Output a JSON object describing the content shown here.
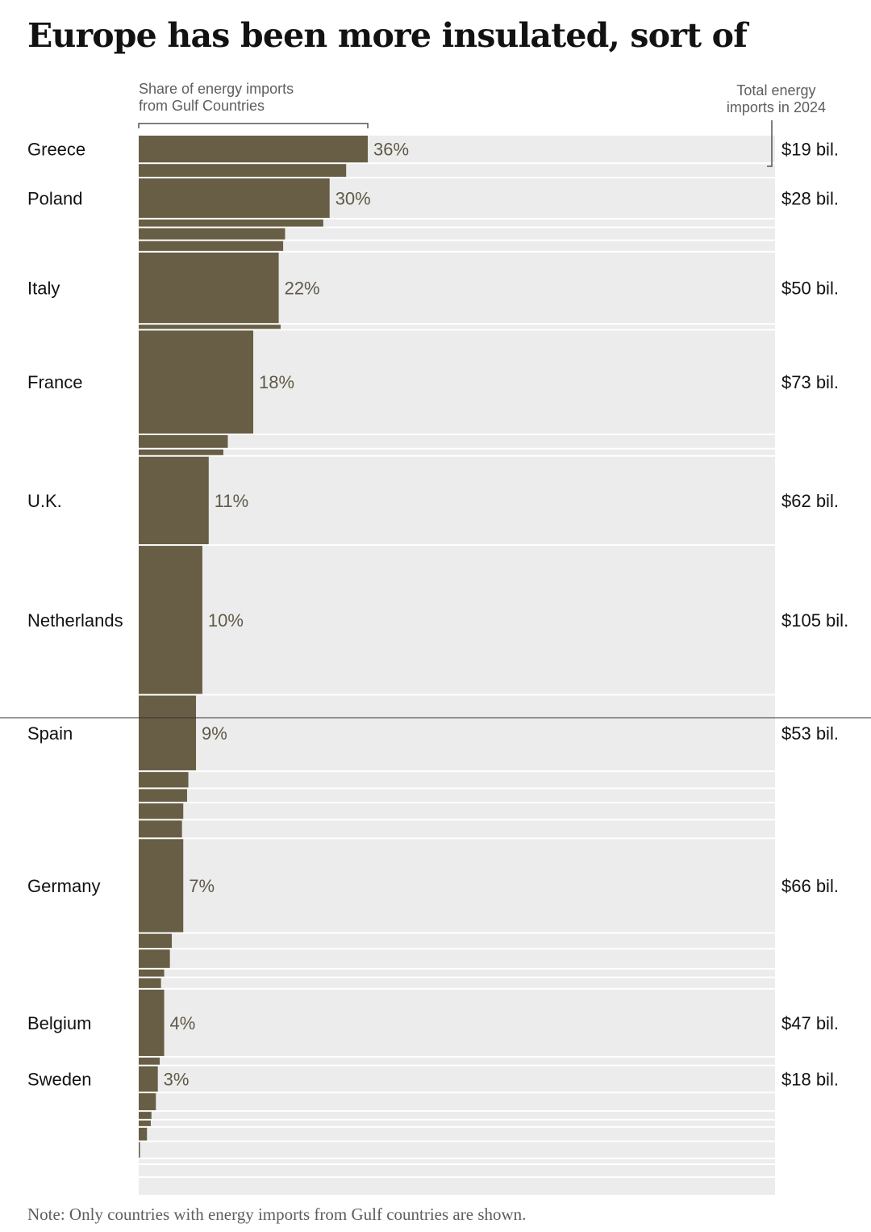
{
  "title": "Europe has been more insulated, sort of",
  "header": {
    "share_line1": "Share of energy imports",
    "share_line2": "from Gulf Countries",
    "total_line1": "Total energy",
    "total_line2": "imports in 2024"
  },
  "note": "Note: Only countries with energy imports from Gulf countries are shown.",
  "colors": {
    "bar": "#675e45",
    "track": "#ececec",
    "pct_text": "#5f5a47"
  },
  "chart_data": {
    "type": "bar",
    "orientation": "horizontal",
    "xlabel": "Share of energy imports from Gulf Countries",
    "total_label": "Total energy imports in 2024",
    "xlim": [
      0,
      100
    ],
    "units": {
      "share": "%",
      "total": "$ billions"
    },
    "row_height_encodes": "total energy imports in 2024",
    "rows": [
      {
        "country": "Greece",
        "share": 36,
        "pct_label": "36%",
        "total": 19,
        "total_label": "$19 bil."
      },
      {
        "country": "",
        "share": 32.6,
        "total": 9
      },
      {
        "country": "Poland",
        "share": 30,
        "pct_label": "30%",
        "total": 28,
        "total_label": "$28 bil."
      },
      {
        "country": "",
        "share": 29,
        "total": 5
      },
      {
        "country": "",
        "share": 23,
        "total": 8
      },
      {
        "country": "",
        "share": 22.7,
        "total": 7
      },
      {
        "country": "Italy",
        "share": 22,
        "pct_label": "22%",
        "total": 50,
        "total_label": "$50 bil."
      },
      {
        "country": "",
        "share": 22.3,
        "total": 3
      },
      {
        "country": "France",
        "share": 18,
        "pct_label": "18%",
        "total": 73,
        "total_label": "$73 bil."
      },
      {
        "country": "",
        "share": 14,
        "total": 9
      },
      {
        "country": "",
        "share": 13.3,
        "total": 4
      },
      {
        "country": "U.K.",
        "share": 11,
        "pct_label": "11%",
        "total": 62,
        "total_label": "$62 bil."
      },
      {
        "country": "Netherlands",
        "share": 10,
        "pct_label": "10%",
        "total": 105,
        "total_label": "$105 bil."
      },
      {
        "country": "Spain",
        "share": 9,
        "pct_label": "9%",
        "total": 53,
        "total_label": "$53 bil."
      },
      {
        "country": "",
        "share": 7.8,
        "total": 11
      },
      {
        "country": "",
        "share": 7.6,
        "total": 9
      },
      {
        "country": "",
        "share": 7,
        "total": 11
      },
      {
        "country": "",
        "share": 6.8,
        "total": 12
      },
      {
        "country": "Germany",
        "share": 7,
        "pct_label": "7%",
        "total": 66,
        "total_label": "$66 bil."
      },
      {
        "country": "",
        "share": 5.2,
        "total": 10
      },
      {
        "country": "",
        "share": 4.9,
        "total": 13
      },
      {
        "country": "",
        "share": 4,
        "total": 5
      },
      {
        "country": "",
        "share": 3.5,
        "total": 7
      },
      {
        "country": "Belgium",
        "share": 4,
        "pct_label": "4%",
        "total": 47,
        "total_label": "$47 bil."
      },
      {
        "country": "",
        "share": 3.3,
        "total": 5
      },
      {
        "country": "Sweden",
        "share": 3,
        "pct_label": "3%",
        "total": 18,
        "total_label": "$18 bil."
      },
      {
        "country": "",
        "share": 2.7,
        "total": 12
      },
      {
        "country": "",
        "share": 2,
        "total": 5
      },
      {
        "country": "",
        "share": 1.9,
        "total": 4
      },
      {
        "country": "",
        "share": 1.3,
        "total": 9
      },
      {
        "country": "",
        "share": 0.2,
        "total": 11
      },
      {
        "country": "",
        "share": 0,
        "total": 3
      },
      {
        "country": "",
        "share": 0,
        "total": 8
      },
      {
        "country": "",
        "share": 0,
        "total": 12
      }
    ]
  }
}
